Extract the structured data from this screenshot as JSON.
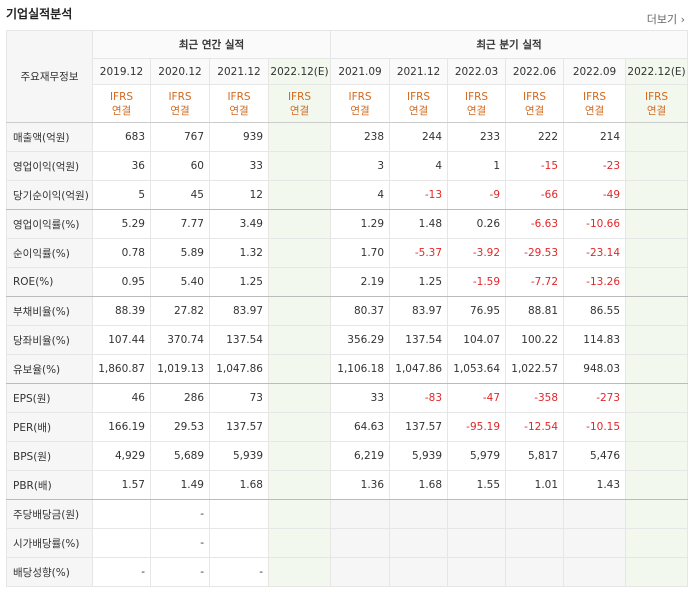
{
  "header": {
    "title": "기업실적분석",
    "more": "더보기"
  },
  "table": {
    "corner": "주요재무정보",
    "groups": [
      {
        "label": "최근 연간 실적",
        "span": 4
      },
      {
        "label": "최근 분기 실적",
        "span": 6
      }
    ],
    "columns": [
      {
        "period": "2019.12",
        "standard": "IFRS",
        "basis": "연결"
      },
      {
        "period": "2020.12",
        "standard": "IFRS",
        "basis": "연결"
      },
      {
        "period": "2021.12",
        "standard": "IFRS",
        "basis": "연결"
      },
      {
        "period": "2022.12(E)",
        "standard": "IFRS",
        "basis": "연결"
      },
      {
        "period": "2021.09",
        "standard": "IFRS",
        "basis": "연결"
      },
      {
        "period": "2021.12",
        "standard": "IFRS",
        "basis": "연결"
      },
      {
        "period": "2022.03",
        "standard": "IFRS",
        "basis": "연결"
      },
      {
        "period": "2022.06",
        "standard": "IFRS",
        "basis": "연결"
      },
      {
        "period": "2022.09",
        "standard": "IFRS",
        "basis": "연결"
      },
      {
        "period": "2022.12(E)",
        "standard": "IFRS",
        "basis": "연결"
      }
    ],
    "rows": [
      {
        "label": "매출액(억원)",
        "values": [
          "683",
          "767",
          "939",
          null,
          "238",
          "244",
          "233",
          "222",
          "214",
          null
        ]
      },
      {
        "label": "영업이익(억원)",
        "values": [
          "36",
          "60",
          "33",
          null,
          "3",
          "4",
          "1",
          "-15",
          "-23",
          null
        ]
      },
      {
        "label": "당기순이익(억원)",
        "values": [
          "5",
          "45",
          "12",
          null,
          "4",
          "-13",
          "-9",
          "-66",
          "-49",
          null
        ]
      },
      {
        "label": "영업이익률(%)",
        "values": [
          "5.29",
          "7.77",
          "3.49",
          null,
          "1.29",
          "1.48",
          "0.26",
          "-6.63",
          "-10.66",
          null
        ]
      },
      {
        "label": "순이익률(%)",
        "values": [
          "0.78",
          "5.89",
          "1.32",
          null,
          "1.70",
          "-5.37",
          "-3.92",
          "-29.53",
          "-23.14",
          null
        ]
      },
      {
        "label": "ROE(%)",
        "values": [
          "0.95",
          "5.40",
          "1.25",
          null,
          "2.19",
          "1.25",
          "-1.59",
          "-7.72",
          "-13.26",
          null
        ]
      },
      {
        "label": "부채비율(%)",
        "values": [
          "88.39",
          "27.82",
          "83.97",
          null,
          "80.37",
          "83.97",
          "76.95",
          "88.81",
          "86.55",
          null
        ]
      },
      {
        "label": "당좌비율(%)",
        "values": [
          "107.44",
          "370.74",
          "137.54",
          null,
          "356.29",
          "137.54",
          "104.07",
          "100.22",
          "114.83",
          null
        ]
      },
      {
        "label": "유보율(%)",
        "values": [
          "1,860.87",
          "1,019.13",
          "1,047.86",
          null,
          "1,106.18",
          "1,047.86",
          "1,053.64",
          "1,022.57",
          "948.03",
          null
        ]
      },
      {
        "label": "EPS(원)",
        "values": [
          "46",
          "286",
          "73",
          null,
          "33",
          "-83",
          "-47",
          "-358",
          "-273",
          null
        ]
      },
      {
        "label": "PER(배)",
        "values": [
          "166.19",
          "29.53",
          "137.57",
          null,
          "64.63",
          "137.57",
          "-95.19",
          "-12.54",
          "-10.15",
          null
        ]
      },
      {
        "label": "BPS(원)",
        "values": [
          "4,929",
          "5,689",
          "5,939",
          null,
          "6,219",
          "5,939",
          "5,979",
          "5,817",
          "5,476",
          null
        ]
      },
      {
        "label": "PBR(배)",
        "values": [
          "1.57",
          "1.49",
          "1.68",
          null,
          "1.36",
          "1.68",
          "1.55",
          "1.01",
          "1.43",
          null
        ]
      },
      {
        "label": "주당배당금(원)",
        "values": [
          null,
          "-",
          null,
          null,
          null,
          null,
          null,
          null,
          null,
          null
        ]
      },
      {
        "label": "시가배당률(%)",
        "values": [
          null,
          "-",
          null,
          null,
          null,
          null,
          null,
          null,
          null,
          null
        ]
      },
      {
        "label": "배당성향(%)",
        "values": [
          "-",
          "-",
          "-",
          null,
          null,
          null,
          null,
          null,
          null,
          null
        ]
      }
    ]
  }
}
